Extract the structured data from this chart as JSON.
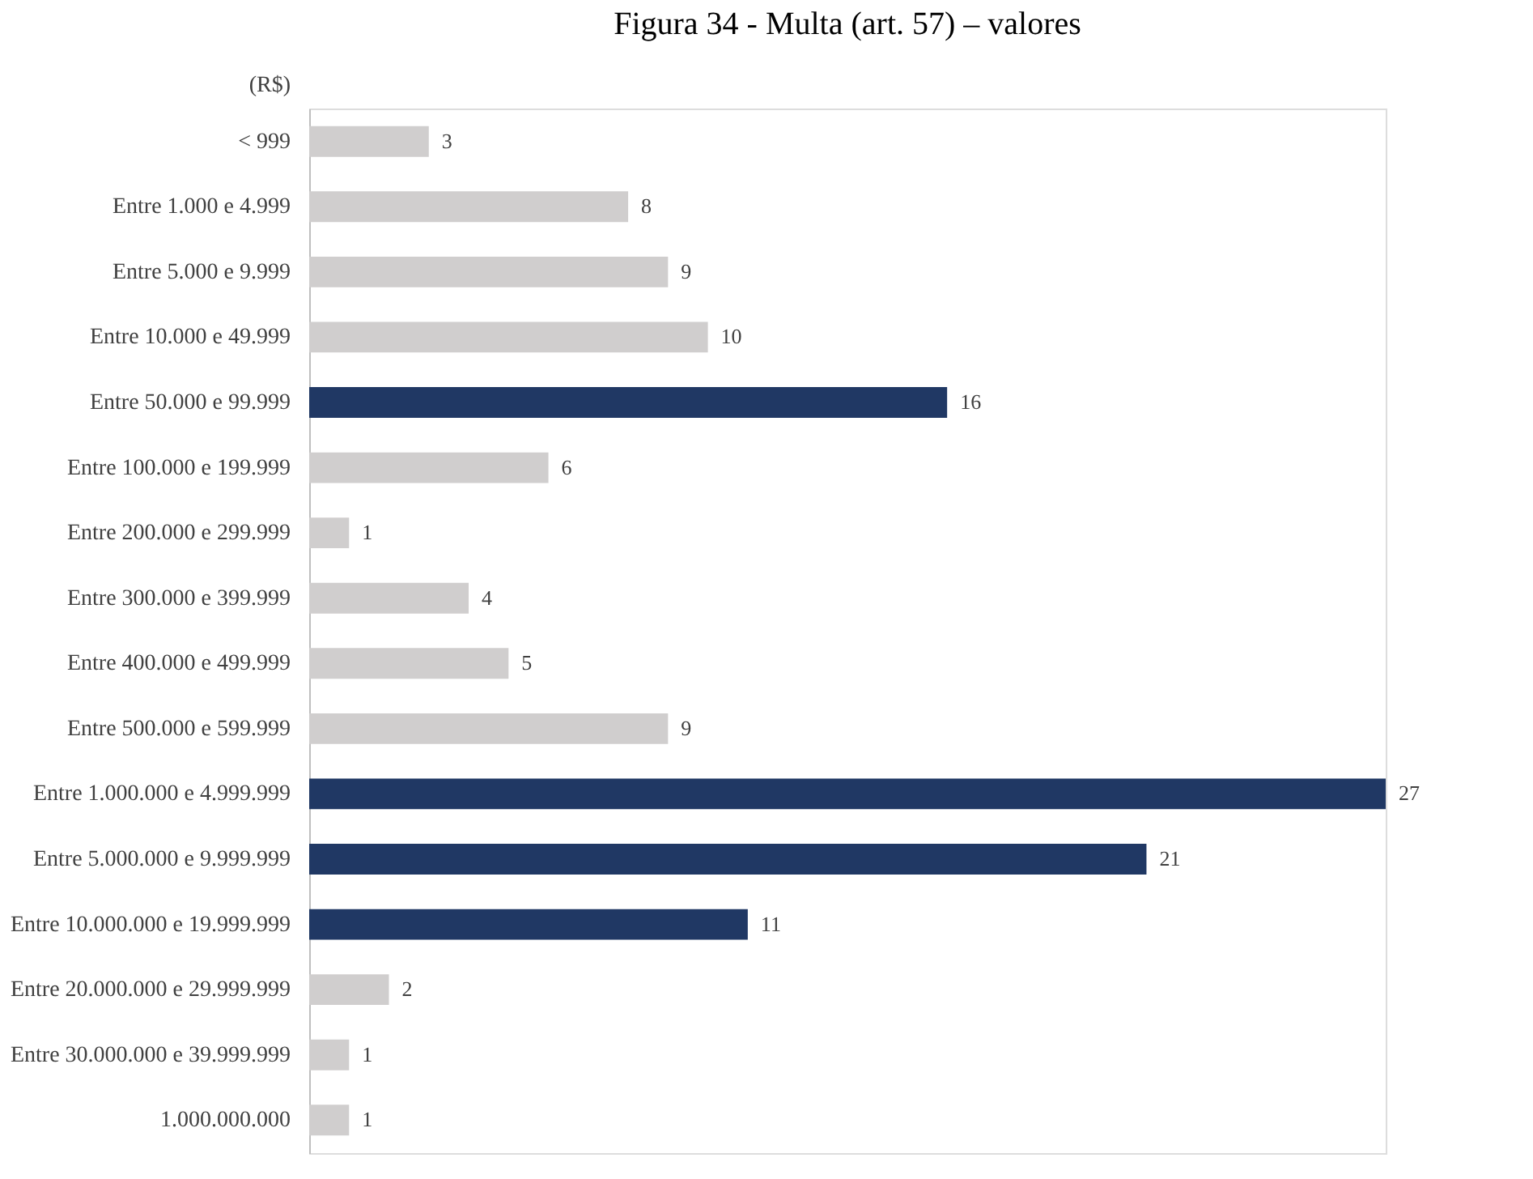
{
  "chart_data": {
    "type": "bar",
    "orientation": "horizontal",
    "title": "Figura 34 - Multa (art. 57) – valores",
    "ylabel": "(R$)",
    "categories": [
      "< 999",
      "Entre 1.000 e 4.999",
      "Entre 5.000 e 9.999",
      "Entre 10.000 e 49.999",
      "Entre 50.000 e 99.999",
      "Entre 100.000 e 199.999",
      "Entre 200.000 e 299.999",
      "Entre 300.000 e 399.999",
      "Entre 400.000 e 499.999",
      "Entre 500.000 e 599.999",
      "Entre 1.000.000 e 4.999.999",
      "Entre 5.000.000 e 9.999.999",
      "Entre 10.000.000 e 19.999.999",
      "Entre 20.000.000 e 29.999.999",
      "Entre 30.000.000 e 39.999.999",
      "1.000.000.000"
    ],
    "values": [
      3,
      8,
      9,
      10,
      16,
      6,
      1,
      4,
      5,
      9,
      27,
      21,
      11,
      2,
      1,
      1
    ],
    "colors": [
      "#d0cece",
      "#d0cece",
      "#d0cece",
      "#d0cece",
      "#203864",
      "#d0cece",
      "#d0cece",
      "#d0cece",
      "#d0cece",
      "#d0cece",
      "#203864",
      "#203864",
      "#203864",
      "#d0cece",
      "#d0cece",
      "#d0cece"
    ],
    "data_labels": true,
    "grid": false,
    "legend": false
  }
}
